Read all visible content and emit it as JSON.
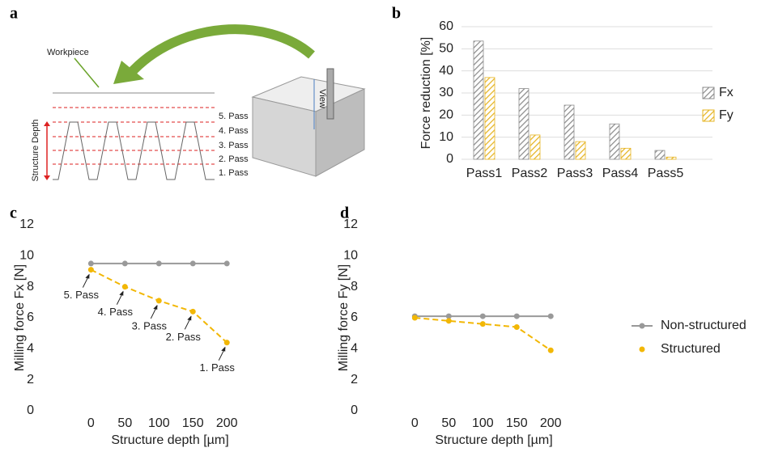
{
  "panel_labels": [
    "a",
    "b",
    "c",
    "d"
  ],
  "diagram": {
    "workpiece_label": "Workpiece",
    "depth_label": "Structure Depth",
    "view_label": "View",
    "pass_labels": [
      "5. Pass",
      "4. Pass",
      "3. Pass",
      "2. Pass",
      "1. Pass"
    ]
  },
  "chart_data": [
    {
      "type": "bar",
      "ylabel": "Force reduction [%]",
      "categories": [
        "Pass1",
        "Pass2",
        "Pass3",
        "Pass4",
        "Pass5"
      ],
      "series": [
        {
          "name": "Fx",
          "color": "#8c8c8c",
          "values": [
            53.5,
            32,
            24.5,
            16,
            4
          ]
        },
        {
          "name": "Fy",
          "color": "#e6b422",
          "values": [
            37,
            11,
            8,
            5,
            1
          ]
        }
      ],
      "ylim": [
        0,
        60
      ],
      "yticks": [
        0,
        10,
        20,
        30,
        40,
        50,
        60
      ],
      "grid": true,
      "legend": "right",
      "hatch": true
    },
    {
      "type": "line",
      "xlabel": "Structure depth [µm]",
      "ylabel": "Milling force Fx [N]",
      "x": [
        0,
        50,
        100,
        150,
        200
      ],
      "series": [
        {
          "color": "#999999",
          "line_style": "solid",
          "values": [
            9.5,
            9.5,
            9.5,
            9.5,
            9.5
          ]
        },
        {
          "color": "#f2b705",
          "line_style": "dashed",
          "values": [
            9.1,
            8.0,
            7.1,
            6.4,
            4.4
          ],
          "annotations": [
            "5. Pass",
            "4. Pass",
            "3. Pass",
            "2. Pass",
            "1. Pass"
          ]
        }
      ],
      "xlim": [
        -60,
        245
      ],
      "xticks": [
        0,
        50,
        100,
        150,
        200
      ],
      "ylim": [
        0,
        12
      ],
      "yticks": [
        0,
        2,
        4,
        6,
        8,
        10,
        12
      ],
      "grid": false
    },
    {
      "type": "line",
      "xlabel": "Structure depth [µm]",
      "ylabel": "Milling force Fy [N]",
      "x": [
        0,
        50,
        100,
        150,
        200
      ],
      "series": [
        {
          "name": "Non-structured",
          "color": "#999999",
          "line_style": "solid",
          "values": [
            6.1,
            6.1,
            6.1,
            6.1,
            6.1
          ]
        },
        {
          "name": "Structured",
          "color": "#f2b705",
          "line_style": "dashed",
          "values": [
            6.0,
            5.8,
            5.6,
            5.4,
            3.9
          ]
        }
      ],
      "xlim": [
        -60,
        245
      ],
      "xticks": [
        0,
        50,
        100,
        150,
        200
      ],
      "ylim": [
        0,
        12
      ],
      "yticks": [
        0,
        2,
        4,
        6,
        8,
        10,
        12
      ],
      "grid": false,
      "legend": "right"
    }
  ]
}
